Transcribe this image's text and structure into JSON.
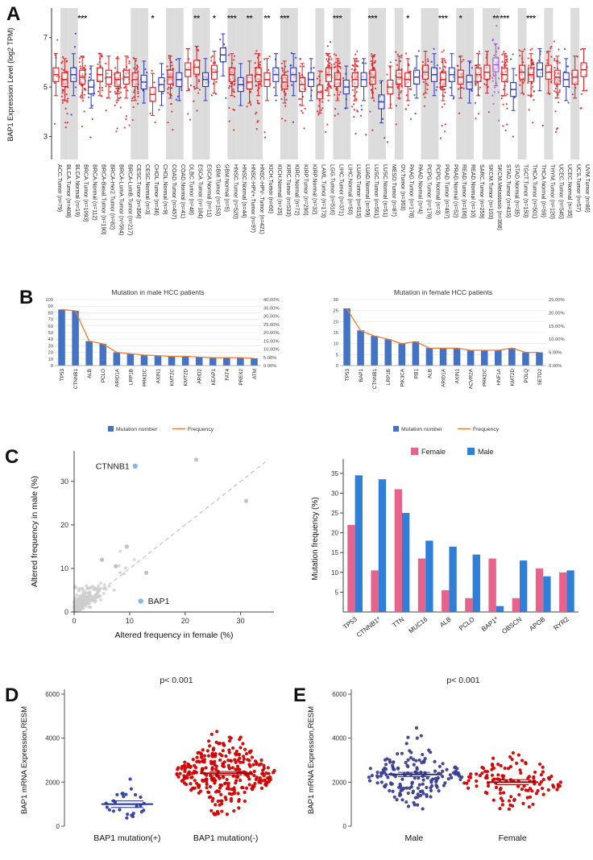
{
  "panels": {
    "a": "A",
    "b": "B",
    "c": "C",
    "d": "D",
    "e": "E"
  },
  "chart_data": [
    {
      "id": "A",
      "type": "box",
      "ylabel": "BAP1 Expression Level (log2 TPM)",
      "yticks": [
        3,
        5,
        7
      ],
      "ylim": [
        2.2,
        8.0
      ],
      "colors": {
        "tumor": "#e21a1f",
        "normal": "#2b35c8",
        "metastasis": "#a25bd4"
      },
      "groups": [
        {
          "label": "ACC.Tumor (n=79)",
          "type": "tumor",
          "median": 5.5
        },
        {
          "label": "BLCA.Tumor (n=408)",
          "type": "tumor",
          "median": 5.3
        },
        {
          "label": "BLCA.Normal (n=19)",
          "type": "normal",
          "median": 5.5
        },
        {
          "label": "BRCA.Tumor (n=1093)",
          "type": "tumor",
          "median": 5.4,
          "sig": "***"
        },
        {
          "label": "BRCA.Normal (n=112)",
          "type": "normal",
          "median": 5.0
        },
        {
          "label": "BRCA-Basal.Tumor (n=190)",
          "type": "tumor",
          "median": 5.5
        },
        {
          "label": "BRCA-Her2.Tumor (n=82)",
          "type": "tumor",
          "median": 5.4
        },
        {
          "label": "BRCA-LumA.Tumor (n=564)",
          "type": "tumor",
          "median": 5.3
        },
        {
          "label": "BRCA-LumB.Tumor (n=217)",
          "type": "tumor",
          "median": 5.4
        },
        {
          "label": "CESC.Tumor (n=304)",
          "type": "tumor",
          "median": 5.3
        },
        {
          "label": "CESC.Normal (n=3)",
          "type": "normal",
          "median": 5.2
        },
        {
          "label": "CHOL.Tumor (n=36)",
          "type": "tumor",
          "median": 4.7,
          "sig": "*"
        },
        {
          "label": "CHOL.Normal (n=9)",
          "type": "normal",
          "median": 5.1
        },
        {
          "label": "COAD.Tumor (n=457)",
          "type": "tumor",
          "median": 5.4
        },
        {
          "label": "COAD.Normal (n=41)",
          "type": "normal",
          "median": 5.3
        },
        {
          "label": "DLBC.Tumor (n=48)",
          "type": "tumor",
          "median": 5.7
        },
        {
          "label": "ESCA.Tumor (n=184)",
          "type": "tumor",
          "median": 5.8,
          "sig": "**"
        },
        {
          "label": "ESCA.Normal (n=11)",
          "type": "normal",
          "median": 5.3
        },
        {
          "label": "GBM.Tumor (n=153)",
          "type": "tumor",
          "median": 5.6,
          "sig": "*"
        },
        {
          "label": "GBM.Normal (n=5)",
          "type": "normal",
          "median": 6.3
        },
        {
          "label": "HNSC.Tumor (n=520)",
          "type": "tumor",
          "median": 5.5,
          "sig": "***"
        },
        {
          "label": "HNSC.Normal (n=44)",
          "type": "normal",
          "median": 5.1
        },
        {
          "label": "HNSC-HPV+.Tumor (n=97)",
          "type": "tumor",
          "median": 5.2,
          "sig": "**"
        },
        {
          "label": "HNSC-HPV-.Tumor (n=421)",
          "type": "tumor",
          "median": 5.5
        },
        {
          "label": "KICH.Tumor (n=66)",
          "type": "tumor",
          "median": 5.3,
          "sig": "**"
        },
        {
          "label": "KICH.Normal (n=25)",
          "type": "normal",
          "median": 5.5
        },
        {
          "label": "KIRC.Tumor (n=533)",
          "type": "tumor",
          "median": 5.2,
          "sig": "***"
        },
        {
          "label": "KIRC.Normal (n=72)",
          "type": "normal",
          "median": 5.5
        },
        {
          "label": "KIRP.Tumor (n=290)",
          "type": "tumor",
          "median": 5.1
        },
        {
          "label": "KIRP.Normal (n=32)",
          "type": "normal",
          "median": 5.3
        },
        {
          "label": "LAML.Tumor (n=173)",
          "type": "tumor",
          "median": 4.8
        },
        {
          "label": "LGG.Tumor (n=516)",
          "type": "tumor",
          "median": 5.5
        },
        {
          "label": "LIHC.Tumor (n=371)",
          "type": "tumor",
          "median": 5.3,
          "sig": "***"
        },
        {
          "label": "LIHC.Normal (n=50)",
          "type": "normal",
          "median": 5.0
        },
        {
          "label": "LUAD.Tumor (n=515)",
          "type": "tumor",
          "median": 5.3
        },
        {
          "label": "LUAD.Normal (n=59)",
          "type": "normal",
          "median": 5.3
        },
        {
          "label": "LUSC.Tumor (n=501)",
          "type": "tumor",
          "median": 5.4,
          "sig": "***"
        },
        {
          "label": "LUSC.Normal (n=51)",
          "type": "normal",
          "median": 4.4
        },
        {
          "label": "MESO.Tumor (n=87)",
          "type": "tumor",
          "median": 5.0
        },
        {
          "label": "OV.Tumor (n=303)",
          "type": "tumor",
          "median": 5.4
        },
        {
          "label": "PAAD.Tumor (n=178)",
          "type": "tumor",
          "median": 5.3,
          "sig": "*"
        },
        {
          "label": "PAAD.Normal (n=4)",
          "type": "normal",
          "median": 5.4
        },
        {
          "label": "PCPG.Tumor (n=179)",
          "type": "tumor",
          "median": 5.6
        },
        {
          "label": "PCPG.Normal (n=3)",
          "type": "normal",
          "median": 5.5
        },
        {
          "label": "PRAD.Tumor (n=497)",
          "type": "tumor",
          "median": 5.3,
          "sig": "***"
        },
        {
          "label": "PRAD.Normal (n=52)",
          "type": "normal",
          "median": 5.5
        },
        {
          "label": "READ.Tumor (n=166)",
          "type": "tumor",
          "median": 5.4,
          "sig": "*"
        },
        {
          "label": "READ.Normal (n=10)",
          "type": "normal",
          "median": 5.2
        },
        {
          "label": "SARC.Tumor (n=259)",
          "type": "tumor",
          "median": 5.5
        },
        {
          "label": "SKCM.Tumor (n=103)",
          "type": "tumor",
          "median": 5.6
        },
        {
          "label": "SKCM.Metastasis (n=368)",
          "type": "metastasis",
          "median": 5.9,
          "sig": "**"
        },
        {
          "label": "STAD.Tumor (n=415)",
          "type": "tumor",
          "median": 5.5,
          "sig": "***"
        },
        {
          "label": "STAD.Normal (n=35)",
          "type": "normal",
          "median": 4.9
        },
        {
          "label": "TGCT.Tumor (n=150)",
          "type": "tumor",
          "median": 5.6
        },
        {
          "label": "THCA.Tumor (n=501)",
          "type": "tumor",
          "median": 5.5,
          "sig": "***"
        },
        {
          "label": "THCA.Normal (n=59)",
          "type": "normal",
          "median": 5.7
        },
        {
          "label": "THYM.Tumor (n=120)",
          "type": "tumor",
          "median": 5.6
        },
        {
          "label": "UCEC.Tumor (n=545)",
          "type": "tumor",
          "median": 5.4
        },
        {
          "label": "UCEC.Normal (n=35)",
          "type": "normal",
          "median": 5.3
        },
        {
          "label": "UCS.Tumor (n=57)",
          "type": "tumor",
          "median": 5.4
        },
        {
          "label": "UVM.Tumor (n=80)",
          "type": "tumor",
          "median": 5.7
        }
      ]
    },
    {
      "id": "B1",
      "type": "bar-line",
      "title": "Mutation in male HCC patients",
      "categories": [
        "TP53",
        "CTNNB1",
        "ALB",
        "PCLO",
        "ARID1A",
        "LRP1B",
        "PRKDC",
        "AXIN1",
        "KMT2C",
        "KMT2D",
        "ARID2",
        "KEAP1",
        "FAT4",
        "PREX2",
        "ATM"
      ],
      "bar_series": {
        "name": "Mutation number",
        "color": "#4472c4",
        "values": [
          85,
          83,
          37,
          33,
          20,
          18,
          16,
          15,
          14,
          14,
          13,
          12,
          12,
          12,
          11
        ]
      },
      "line_series": {
        "name": "Frequency",
        "color": "#ed7d31",
        "values_pct": [
          34.0,
          33.2,
          14.8,
          13.2,
          8.0,
          7.2,
          6.4,
          6.0,
          5.6,
          5.6,
          5.2,
          4.8,
          4.8,
          4.8,
          4.4
        ]
      },
      "left_axis": {
        "min": 0,
        "max": 100,
        "step": 10
      },
      "right_axis": {
        "min": 0,
        "max": 40,
        "step": 5
      }
    },
    {
      "id": "B2",
      "type": "bar-line",
      "title": "Mutation in female HCC patients",
      "categories": [
        "TP53",
        "BAP1",
        "CTNNB1",
        "LRP1B",
        "PIK3CA",
        "RB1",
        "ALB",
        "ARID1A",
        "AXIN1",
        "ACVR2A",
        "PRKDC",
        "HNF1A",
        "KMT2D",
        "POLQ",
        "SETD2"
      ],
      "bar_series": {
        "name": "Mutation number",
        "color": "#4472c4",
        "values": [
          26,
          16,
          13.5,
          12,
          10,
          11,
          8,
          8,
          8,
          7,
          7,
          7,
          8,
          6,
          6
        ]
      },
      "line_series": {
        "name": "Frequency",
        "color": "#ed7d31",
        "values_pct": [
          21.5,
          13.2,
          11.2,
          10.0,
          8.3,
          9.1,
          6.6,
          6.6,
          6.6,
          5.8,
          5.8,
          5.8,
          6.6,
          5.0,
          5.0
        ]
      },
      "left_axis": {
        "min": 0,
        "max": 30,
        "step": 5
      },
      "right_axis": {
        "min": 0,
        "max": 25,
        "step": 5
      }
    },
    {
      "id": "C1",
      "type": "scatter",
      "xlabel": "Altered frequency in female (%)",
      "ylabel": "Altered frequency in male (%)",
      "xticks": [
        0,
        10,
        20,
        30
      ],
      "yticks": [
        0,
        10,
        20,
        30
      ],
      "xlim": [
        0,
        36
      ],
      "ylim": [
        0,
        37
      ],
      "diagonal": true,
      "highlight_points": [
        {
          "label": "CTNNB1",
          "x": 11,
          "y": 33.5,
          "color": "#85b6e8",
          "label_side": "left"
        },
        {
          "label": "BAP1",
          "x": 12,
          "y": 2.5,
          "color": "#85b6e8",
          "label_side": "right"
        }
      ],
      "notable_gray_points": [
        [
          22,
          35
        ],
        [
          31,
          25.5
        ],
        [
          9.5,
          15
        ],
        [
          5,
          12
        ],
        [
          7.5,
          10.5
        ],
        [
          13,
          9
        ]
      ]
    },
    {
      "id": "C2",
      "type": "grouped-bar",
      "ylabel": "Mutation frequency (%)",
      "yticks": [
        5,
        10,
        15,
        20,
        25,
        30,
        35
      ],
      "ylim": [
        0,
        37
      ],
      "categories": [
        "TP53",
        "CTNNB1*",
        "TTN",
        "MUC16",
        "ALB",
        "PCLO",
        "BAP1*",
        "OBSCN",
        "APOB",
        "RYR2"
      ],
      "series": [
        {
          "name": "Female",
          "color": "#e8638c",
          "values": [
            22,
            10.5,
            31,
            13.5,
            5.5,
            3.5,
            13.5,
            3.5,
            11,
            10
          ]
        },
        {
          "name": "Male",
          "color": "#2f7ed8",
          "values": [
            34.5,
            33.5,
            25,
            18,
            16.5,
            14.5,
            1.5,
            13,
            9,
            10.5
          ]
        }
      ]
    },
    {
      "id": "D",
      "type": "strip",
      "title": "p< 0.001",
      "ylabel": "BAP1 mRNA Expression,RESM",
      "yticks": [
        0,
        2000,
        4000,
        6000
      ],
      "ylim": [
        0,
        6000
      ],
      "groups": [
        {
          "label": "BAP1 mutation(+)",
          "color": "#2f3ea8",
          "line_color": "#1f2f8f",
          "n": 26,
          "mean": 1000,
          "sd": 380,
          "clamp": [
            300,
            2400
          ],
          "mean_line": true
        },
        {
          "label": "BAP1 mutation(-)",
          "color": "#d40000",
          "line_color": "#990000",
          "n": 310,
          "mean": 2400,
          "sd": 750,
          "clamp": [
            450,
            5450
          ],
          "mean_line": true
        }
      ]
    },
    {
      "id": "E",
      "type": "strip",
      "title": "p< 0.001",
      "ylabel": "BAP1 mRNA Expression,RESM",
      "yticks": [
        0,
        2000,
        4000,
        6000
      ],
      "ylim": [
        0,
        6000
      ],
      "groups": [
        {
          "label": "Male",
          "color": "#3b3f8f",
          "line_color": "#2a2f7a",
          "n": 170,
          "mean": 2350,
          "sd": 620,
          "clamp": [
            700,
            5300
          ],
          "mean_line": true
        },
        {
          "label": "Female",
          "color": "#d40000",
          "line_color": "#990000",
          "n": 118,
          "mean": 2000,
          "sd": 620,
          "clamp": [
            450,
            5800
          ],
          "mean_line": true
        }
      ]
    }
  ]
}
